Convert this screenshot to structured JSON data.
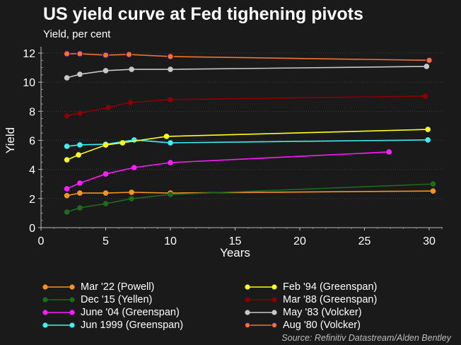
{
  "chart_data": {
    "type": "line",
    "title": "US yield curve at Fed tighening pivots",
    "subtitle": "Yield, per cent",
    "xlabel": "Years",
    "ylabel": "Yield",
    "xlim": [
      0,
      31
    ],
    "ylim": [
      0,
      12.4
    ],
    "xticks": [
      0,
      5,
      10,
      15,
      20,
      25,
      30
    ],
    "yticks": [
      0,
      2,
      4,
      6,
      8,
      10,
      12
    ],
    "grid": true,
    "legend_position": "bottom",
    "series": [
      {
        "name": "Mar '22 (Powell)",
        "color": "#f7941d",
        "x": [
          2,
          3,
          5,
          7,
          10,
          30.3
        ],
        "y": [
          2.2,
          2.38,
          2.38,
          2.43,
          2.38,
          2.52
        ]
      },
      {
        "name": "Dec '15 (Yellen)",
        "color": "#1e6b1e",
        "x": [
          2,
          3,
          5,
          7,
          10,
          30.3
        ],
        "y": [
          1.07,
          1.36,
          1.65,
          1.99,
          2.28,
          3.0
        ]
      },
      {
        "name": "June '04 (Greenspan)",
        "color": "#ff1dff",
        "x": [
          2,
          3,
          5,
          7.2,
          10,
          26.9
        ],
        "y": [
          2.67,
          3.06,
          3.69,
          4.13,
          4.47,
          5.2
        ]
      },
      {
        "name": "Jun 1999 (Greenspan)",
        "color": "#3ff0f0",
        "x": [
          2,
          3,
          5,
          7.2,
          10,
          29.9
        ],
        "y": [
          5.59,
          5.69,
          5.73,
          6.03,
          5.83,
          6.03
        ]
      },
      {
        "name": "Feb '94 (Greenspan)",
        "color": "#ffff1a",
        "x": [
          2,
          2.9,
          5,
          6.3,
          9.7,
          29.9
        ],
        "y": [
          4.66,
          5.0,
          5.68,
          5.83,
          6.27,
          6.75
        ]
      },
      {
        "name": "Mar '88 (Greenspan)",
        "color": "#8b0000",
        "x": [
          2,
          3,
          5.2,
          6.9,
          10,
          29.7
        ],
        "y": [
          7.68,
          7.87,
          8.26,
          8.6,
          8.8,
          9.04
        ]
      },
      {
        "name": "May '83 (Volcker)",
        "color": "#c8c8c8",
        "x": [
          2,
          3,
          5,
          7,
          10,
          29.8
        ],
        "y": [
          10.3,
          10.54,
          10.79,
          10.88,
          10.88,
          11.08
        ]
      },
      {
        "name": "Aug '80 (Volcker)",
        "color": "#f0742a",
        "edge": "#3a0a6a",
        "x": [
          2,
          3,
          5,
          6.8,
          10,
          30
        ],
        "y": [
          11.95,
          11.95,
          11.86,
          11.9,
          11.76,
          11.5
        ]
      }
    ],
    "source": "Source: Refinitiv Datastream/Alden Bentley"
  }
}
